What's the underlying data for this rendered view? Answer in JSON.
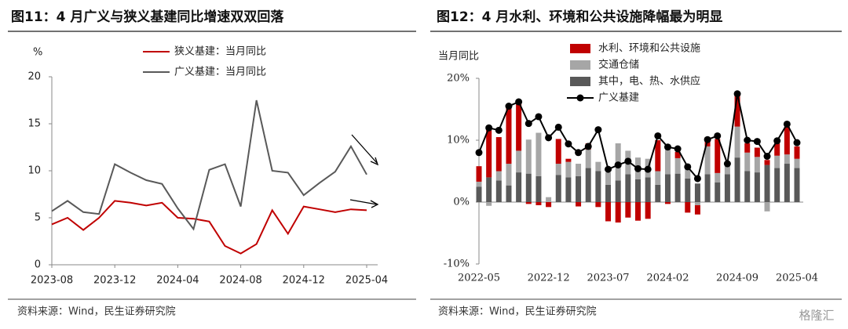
{
  "chart_data": [
    {
      "type": "line",
      "title": "图11：4 月广义与狭义基建同比增速双双回落",
      "y_label": "%",
      "source": "资料来源：Wind，民生证券研究院",
      "categories": [
        "2023-08",
        null,
        null,
        null,
        "2023-12",
        null,
        null,
        null,
        "2024-04",
        null,
        null,
        null,
        "2024-08",
        null,
        null,
        null,
        "2024-12",
        null,
        null,
        null,
        "2025-04"
      ],
      "series": [
        {
          "name": "狭义基建：当月同比",
          "color": "#c00000",
          "values": [
            4.3,
            5.0,
            3.7,
            5.0,
            6.8,
            6.6,
            6.3,
            6.6,
            5.0,
            4.9,
            4.6,
            2.0,
            1.2,
            2.2,
            5.8,
            3.3,
            6.2,
            5.9,
            5.6,
            5.9,
            5.8
          ]
        },
        {
          "name": "广义基建：当月同比",
          "color": "#595959",
          "values": [
            5.7,
            6.8,
            5.6,
            5.4,
            10.7,
            9.8,
            9.0,
            8.6,
            6.0,
            3.8,
            10.1,
            10.7,
            6.2,
            17.5,
            10.0,
            9.8,
            7.4,
            8.7,
            9.9,
            12.6,
            9.6
          ]
        }
      ],
      "ylim": [
        0,
        20
      ],
      "yticks": [
        0,
        5,
        10,
        15,
        20
      ],
      "legend": "top"
    },
    {
      "type": "bar",
      "stacked": true,
      "title": "图12：4 月水利、环境和公共设施降幅最为明显",
      "y_label": "当月同比",
      "source": "资料来源：Wind，民生证券研究院",
      "watermark": "格隆汇",
      "categories": [
        "2022-05",
        null,
        null,
        null,
        null,
        null,
        null,
        "2022-12",
        null,
        null,
        null,
        null,
        null,
        "2023-07",
        null,
        null,
        null,
        null,
        null,
        "2024-02",
        null,
        null,
        null,
        null,
        null,
        null,
        "2024-09",
        null,
        null,
        null,
        null,
        null,
        "2025-04"
      ],
      "series": [
        {
          "name": "水利、环境和公共设施",
          "color": "#c00000",
          "values": [
            2.5,
            7.8,
            5.5,
            9.3,
            8.0,
            -0.3,
            -0.5,
            -0.8,
            4.0,
            0.5,
            -0.7,
            1.0,
            -0.8,
            -3.1,
            -3.3,
            -2.5,
            -3.0,
            -2.7,
            5.0,
            -0.3,
            1.0,
            -1.7,
            -1.5,
            1.5,
            5.5,
            0.5,
            5.0,
            1.5,
            1.5,
            0.8,
            2.0,
            4.5,
            2.0
          ]
        },
        {
          "name": "交通仓储",
          "color": "#a6a6a6",
          "values": [
            0.8,
            -0.6,
            1.5,
            3.5,
            3.5,
            5.5,
            7.0,
            0.8,
            1.8,
            2.5,
            2.0,
            3.0,
            1.5,
            2.0,
            6.0,
            3.8,
            3.5,
            3.0,
            2.2,
            4.0,
            2.5,
            2.0,
            -0.5,
            4.5,
            1.5,
            1.5,
            5.0,
            3.0,
            2.5,
            -1.5,
            2.0,
            1.5,
            1.5
          ]
        },
        {
          "name": "其中，电、热、水供应",
          "color": "#595959",
          "values": [
            2.5,
            4.0,
            3.5,
            2.7,
            4.8,
            4.6,
            4.2,
            0.0,
            4.4,
            4.0,
            4.2,
            5.5,
            5.0,
            2.8,
            3.5,
            4.5,
            3.7,
            4.0,
            2.8,
            4.5,
            4.6,
            3.8,
            3.0,
            4.5,
            3.2,
            4.5,
            7.2,
            5.0,
            4.8,
            6.0,
            5.5,
            6.2,
            5.5
          ]
        },
        {
          "name": "广义基建",
          "color": "#000000",
          "type": "line",
          "values": [
            8.0,
            12.0,
            11.6,
            15.5,
            16.2,
            12.7,
            13.8,
            10.4,
            12.1,
            9.4,
            8.0,
            9.0,
            11.7,
            5.3,
            6.0,
            6.6,
            5.4,
            5.3,
            10.7,
            8.9,
            8.6,
            5.7,
            3.8,
            10.1,
            10.7,
            6.2,
            17.5,
            10.0,
            9.8,
            7.4,
            9.9,
            12.6,
            9.6
          ]
        }
      ],
      "ylim": [
        -10,
        20
      ],
      "yticks": [
        {
          "value": -10,
          "label": "-10%"
        },
        {
          "value": 0,
          "label": "0%"
        },
        {
          "value": 10,
          "label": "10%"
        },
        {
          "value": 20,
          "label": "20%"
        }
      ],
      "legend": "top-left"
    }
  ]
}
